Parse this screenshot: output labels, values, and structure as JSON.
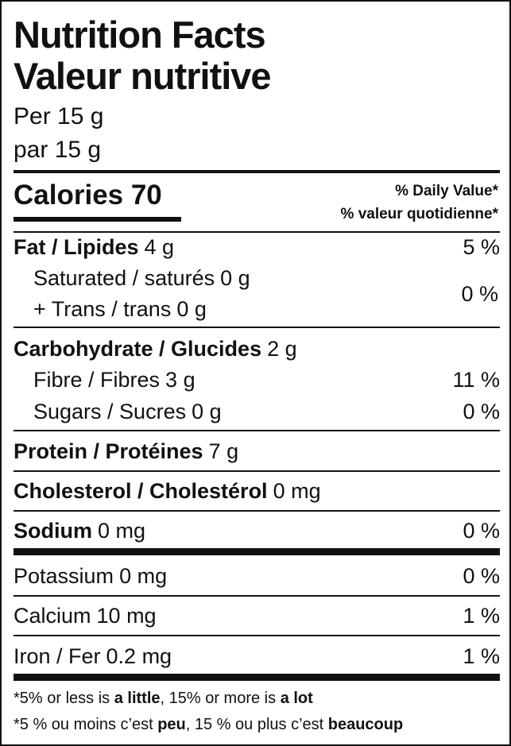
{
  "title_en": "Nutrition Facts",
  "title_fr": "Valeur nutritive",
  "serving_en": "Per 15 g",
  "serving_fr": "par 15 g",
  "calories": "Calories 70",
  "dv_header_en": "% Daily Value*",
  "dv_header_fr": "% valeur quotidienne*",
  "fat": {
    "name": "Fat / Lipides",
    "amount": "4 g",
    "dv": "5 %"
  },
  "saturated": {
    "name": "Saturated / saturés",
    "amount": "0 g"
  },
  "trans": {
    "name": "+ Trans / trans",
    "amount": "0 g"
  },
  "sat_trans_dv": "0 %",
  "carbohydrate": {
    "name": "Carbohydrate / Glucides",
    "amount": "2 g"
  },
  "fibre": {
    "name": "Fibre / Fibres",
    "amount": "3 g",
    "dv": "11 %"
  },
  "sugars": {
    "name": "Sugars / Sucres",
    "amount": "0 g",
    "dv": "0 %"
  },
  "protein": {
    "name": "Protein / Protéines",
    "amount": "7 g"
  },
  "cholesterol": {
    "name": "Cholesterol / Cholestérol",
    "amount": "0 mg"
  },
  "sodium": {
    "name": "Sodium",
    "amount": "0 mg",
    "dv": "0 %"
  },
  "potassium": {
    "name": "Potassium",
    "amount": "0 mg",
    "dv": "0 %"
  },
  "calcium": {
    "name": "Calcium",
    "amount": "10 mg",
    "dv": "1 %"
  },
  "iron": {
    "name": "Iron / Fer",
    "amount": "0.2 mg",
    "dv": "1 %"
  },
  "footnote_en": [
    "*5% or less is ",
    "a little",
    ", 15% or more is ",
    "a lot"
  ],
  "footnote_fr": [
    "*5 % ou moins c’est ",
    "peu",
    ", 15 % ou plus c’est ",
    "beaucoup"
  ]
}
